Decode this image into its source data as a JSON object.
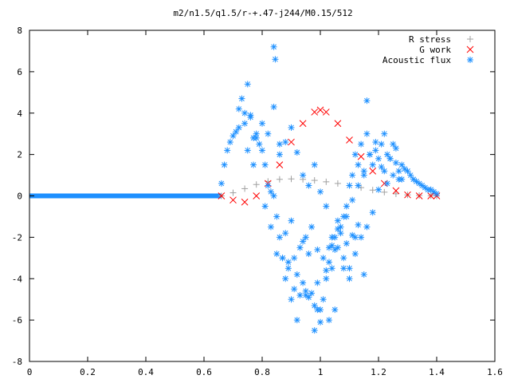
{
  "chart_data": {
    "type": "scatter",
    "title": "m2/n1.5/q1.5/r-+.47-j244/M0.15/512",
    "xlabel": "",
    "ylabel": "",
    "xlim": [
      0,
      1.6
    ],
    "ylim": [
      -8,
      8
    ],
    "xticks": [
      "0",
      "0.2",
      "0.4",
      "0.6",
      "0.8",
      "1",
      "1.2",
      "1.4",
      "1.6"
    ],
    "yticks": [
      "8",
      "6",
      "4",
      "2",
      "0",
      "-2",
      "-4",
      "-6",
      "-8"
    ],
    "grid": false,
    "legend_position": "top-right",
    "series": [
      {
        "name": "R stress",
        "marker": "plus",
        "color": "#a0a0a0",
        "x": [
          0.66,
          0.7,
          0.74,
          0.78,
          0.82,
          0.86,
          0.9,
          0.94,
          0.98,
          1.02,
          1.06,
          1.1,
          1.14,
          1.18,
          1.22,
          1.26,
          1.3,
          1.34,
          1.38,
          1.4
        ],
        "y": [
          0.0,
          0.15,
          0.35,
          0.55,
          0.7,
          0.8,
          0.82,
          0.8,
          0.75,
          0.68,
          0.6,
          0.5,
          0.4,
          0.28,
          0.18,
          0.1,
          0.05,
          0.02,
          0.01,
          0.0
        ]
      },
      {
        "name": "G work",
        "marker": "cross",
        "color": "#ff0000",
        "x": [
          0.66,
          0.7,
          0.74,
          0.78,
          0.82,
          0.86,
          0.9,
          0.94,
          0.98,
          1.0,
          1.02,
          1.06,
          1.1,
          1.14,
          1.18,
          1.22,
          1.26,
          1.3,
          1.34,
          1.38,
          1.4
        ],
        "y": [
          0.0,
          -0.2,
          -0.3,
          0.0,
          0.6,
          1.5,
          2.6,
          3.5,
          4.05,
          4.15,
          4.05,
          3.5,
          2.7,
          1.9,
          1.2,
          0.6,
          0.25,
          0.05,
          0.0,
          0.0,
          0.0
        ]
      },
      {
        "name": "Acoustic flux",
        "marker": "star",
        "color": "#1e90ff",
        "x": [
          0.66,
          0.67,
          0.68,
          0.69,
          0.7,
          0.71,
          0.72,
          0.73,
          0.74,
          0.75,
          0.76,
          0.77,
          0.78,
          0.79,
          0.8,
          0.81,
          0.82,
          0.83,
          0.84,
          0.85,
          0.86,
          0.87,
          0.88,
          0.89,
          0.9,
          0.91,
          0.92,
          0.93,
          0.94,
          0.95,
          0.96,
          0.97,
          0.98,
          0.99,
          1.0,
          1.01,
          1.02,
          1.03,
          1.04,
          1.05,
          1.06,
          1.07,
          1.08,
          1.09,
          1.1,
          1.11,
          1.12,
          1.13,
          1.14,
          1.15,
          1.16,
          1.17,
          1.18,
          1.19,
          1.2,
          1.21,
          1.22,
          1.23,
          1.24,
          1.25,
          1.26,
          1.27,
          1.28,
          1.29,
          1.3,
          1.31,
          1.32,
          1.33,
          1.34,
          1.35,
          1.36,
          1.37,
          1.38,
          1.39,
          1.4,
          0.72,
          0.74,
          0.76,
          0.78,
          0.8,
          0.82,
          0.84,
          0.86,
          0.88,
          0.9,
          0.92,
          0.94,
          0.96,
          0.98,
          1.0,
          1.02,
          1.04,
          1.06,
          1.08,
          1.1,
          1.12,
          1.14,
          1.16,
          1.18,
          1.2,
          1.22,
          1.24,
          1.26,
          1.28,
          0.75,
          0.77,
          0.81,
          0.83,
          0.85,
          0.87,
          0.89,
          0.91,
          0.93,
          0.95,
          0.97,
          0.99,
          1.01,
          1.03,
          1.05,
          1.07,
          1.09,
          1.11,
          1.13,
          1.15,
          1.17,
          1.19,
          1.21,
          1.23,
          1.25,
          1.27,
          0.84,
          0.845,
          0.86,
          0.9,
          0.92,
          0.95,
          0.98,
          0.99,
          1.0,
          1.03,
          1.05,
          1.08,
          1.1,
          1.12,
          1.15,
          0.88,
          0.94,
          0.96,
          1.02,
          1.04,
          1.06,
          1.09,
          1.11,
          1.13,
          1.16
        ],
        "y": [
          0.6,
          1.5,
          2.2,
          2.6,
          2.9,
          3.1,
          3.3,
          4.7,
          3.5,
          5.4,
          3.8,
          2.8,
          3.0,
          2.5,
          2.2,
          1.5,
          0.5,
          0.2,
          0.0,
          -1.0,
          -2.0,
          -3.0,
          -4.0,
          -3.5,
          -5.0,
          -4.5,
          -3.8,
          -4.8,
          -4.2,
          -4.6,
          -4.9,
          -4.7,
          -5.3,
          -5.5,
          -5.5,
          -5.0,
          -4.0,
          -2.5,
          -3.5,
          -2.0,
          -1.2,
          -1.5,
          -1.0,
          -0.5,
          0.5,
          1.0,
          2.0,
          1.5,
          2.5,
          1.0,
          3.0,
          2.0,
          1.5,
          2.2,
          1.8,
          2.5,
          3.0,
          2.0,
          1.8,
          2.5,
          1.6,
          0.8,
          1.5,
          1.3,
          1.2,
          1.0,
          0.8,
          0.7,
          0.6,
          0.5,
          0.4,
          0.3,
          0.3,
          0.2,
          0.1,
          4.2,
          4.0,
          3.9,
          2.8,
          3.5,
          3.0,
          4.3,
          2.0,
          2.6,
          3.3,
          2.1,
          1.0,
          0.5,
          1.5,
          0.2,
          -0.5,
          -2.0,
          -2.5,
          -3.0,
          -3.5,
          -2.8,
          -2.0,
          -1.5,
          -0.8,
          0.3,
          1.2,
          1.8,
          2.3,
          0.8,
          2.2,
          1.5,
          -0.5,
          -1.5,
          -2.8,
          -3.0,
          -3.2,
          -3.0,
          -2.5,
          -2.0,
          -1.5,
          -2.6,
          -3.0,
          -3.2,
          -2.6,
          -1.8,
          -1.0,
          -0.2,
          0.5,
          1.2,
          2.0,
          2.6,
          1.4,
          0.6,
          1.0,
          1.2,
          7.2,
          6.6,
          2.5,
          -1.2,
          -6.0,
          -4.8,
          -6.5,
          -4.2,
          -6.1,
          -6.0,
          -5.5,
          -3.5,
          -4.0,
          -2.0,
          -3.8,
          -1.8,
          -2.2,
          -2.8,
          -3.6,
          -2.4,
          -1.6,
          -2.3,
          -1.9,
          -1.4,
          4.6
        ]
      }
    ],
    "baseline": {
      "series": "Acoustic flux",
      "x_start": 0,
      "x_end": 0.66,
      "y": 0
    }
  }
}
